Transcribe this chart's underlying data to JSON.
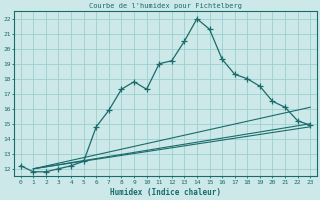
{
  "title": "Courbe de l'humidex pour Fichtelberg",
  "xlabel": "Humidex (Indice chaleur)",
  "bg_color": "#cce8e8",
  "grid_color": "#9dcfcf",
  "line_color": "#1a6b6b",
  "xlim": [
    -0.5,
    23.5
  ],
  "ylim": [
    11.5,
    22.5
  ],
  "xticks": [
    0,
    1,
    2,
    3,
    4,
    5,
    6,
    7,
    8,
    9,
    10,
    11,
    12,
    13,
    14,
    15,
    16,
    17,
    18,
    19,
    20,
    21,
    22,
    23
  ],
  "yticks": [
    12,
    13,
    14,
    15,
    16,
    17,
    18,
    19,
    20,
    21,
    22
  ],
  "line1_x": [
    0,
    1,
    2,
    3,
    4,
    5,
    6,
    7,
    8,
    9,
    10,
    11,
    12,
    13,
    14,
    15,
    16,
    17,
    18,
    19,
    20,
    21,
    22,
    23
  ],
  "line1_y": [
    12.2,
    11.8,
    11.8,
    12.0,
    12.2,
    12.5,
    14.8,
    15.9,
    17.3,
    17.8,
    17.3,
    19.0,
    19.2,
    20.5,
    22.0,
    21.3,
    19.3,
    18.3,
    18.0,
    17.5,
    16.5,
    16.1,
    15.2,
    14.9
  ],
  "line2_x": [
    1,
    23
  ],
  "line2_y": [
    12.0,
    16.1
  ],
  "line3_x": [
    1,
    23
  ],
  "line3_y": [
    12.0,
    15.0
  ],
  "line4_x": [
    1,
    23
  ],
  "line4_y": [
    12.0,
    14.8
  ]
}
